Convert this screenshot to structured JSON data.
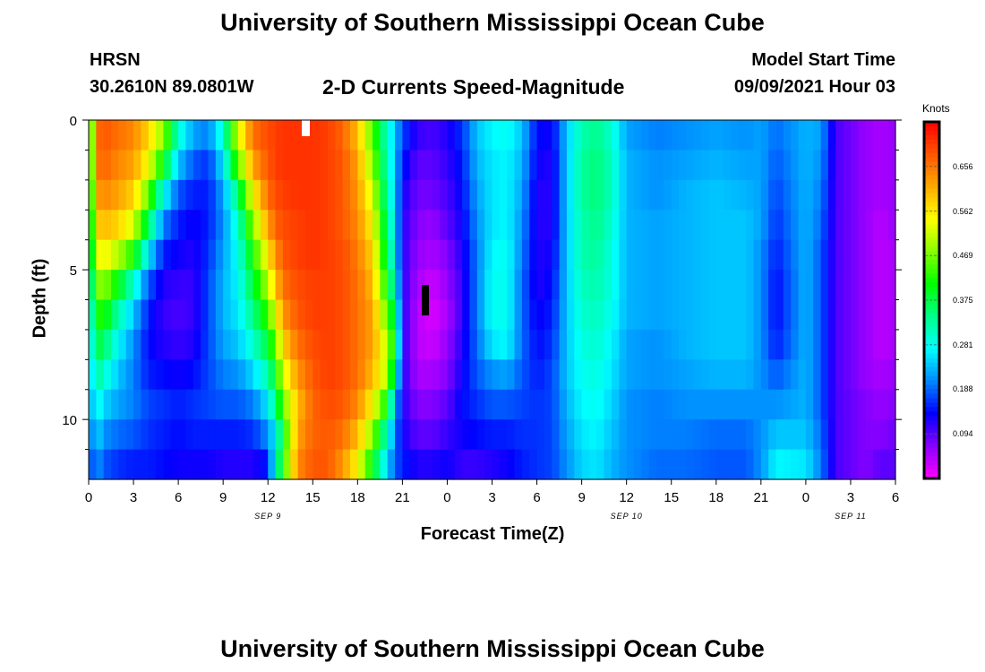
{
  "header": {
    "title": "University of Southern Mississippi Ocean Cube",
    "station": "HRSN",
    "coordinates": "30.2610N  89.0801W",
    "subtitle": "2-D Currents Speed-Magnitude",
    "model_start_label": "Model Start Time",
    "model_start_time": "09/09/2021 Hour 03"
  },
  "footer": {
    "title": "University of Southern Mississippi Ocean Cube"
  },
  "chart_data": {
    "type": "heatmap",
    "title": "2-D Currents Speed-Magnitude",
    "xlabel": "Forecast Time(Z)",
    "ylabel": "Depth (ft)",
    "x_unit": "hours from 09/09 00Z",
    "xlim": [
      0,
      54
    ],
    "x_ticks": [
      0,
      3,
      6,
      9,
      12,
      15,
      18,
      21,
      24,
      27,
      30,
      33,
      36,
      39,
      42,
      45,
      48,
      51,
      54
    ],
    "x_tick_labels": [
      "0",
      "3",
      "6",
      "9",
      "12",
      "15",
      "18",
      "21",
      "0",
      "3",
      "6",
      "9",
      "12",
      "15",
      "18",
      "21",
      "0",
      "3",
      "6"
    ],
    "date_labels": [
      {
        "x": 12,
        "text": "SEP 9"
      },
      {
        "x": 36,
        "text": "SEP 10"
      },
      {
        "x": 51,
        "text": "SEP 11"
      }
    ],
    "ylim": [
      0,
      12
    ],
    "y_major_ticks": [
      0,
      5,
      10
    ],
    "y_minor_ticks": [
      1,
      2,
      3,
      4,
      6,
      7,
      8,
      9,
      11
    ],
    "colorbar": {
      "units": "Knots",
      "range": [
        0.0,
        0.75
      ],
      "tick_values": [
        0.094,
        0.188,
        0.281,
        0.375,
        0.469,
        0.562,
        0.656
      ],
      "tick_labels": [
        "0.094",
        "0.188",
        "0.281",
        "0.375",
        "0.469",
        "0.562",
        "0.656"
      ],
      "colors": [
        "#ff00ff",
        "#8800ff",
        "#0000ff",
        "#0088ff",
        "#00ffff",
        "#00ff88",
        "#00ff00",
        "#88ff00",
        "#ffff00",
        "#ffaa00",
        "#ff5500",
        "#ff0000"
      ]
    },
    "depth_levels_ft": [
      0.5,
      1.5,
      2.5,
      3.5,
      4.5,
      5.5,
      6.5,
      7.5,
      8.5,
      9.5,
      10.5,
      11.5
    ],
    "time_knots_hours": [
      0,
      0.5,
      1,
      2,
      3,
      4,
      5,
      6,
      7,
      8,
      9,
      10,
      11,
      12,
      12.5,
      13,
      14,
      15,
      16,
      17,
      18,
      19,
      20,
      20.5,
      21,
      22,
      23,
      24,
      25,
      26,
      27,
      28,
      29,
      30,
      31,
      32,
      33,
      34,
      35,
      36,
      38,
      40,
      42,
      44,
      45,
      46,
      48,
      49,
      50,
      52,
      53,
      54
    ],
    "speed_profiles_knots": [
      [
        0.3,
        0.3,
        0.29,
        0.28,
        0.27,
        0.25,
        0.23,
        0.22,
        0.2,
        0.19,
        0.17,
        0.15
      ],
      [
        0.66,
        0.65,
        0.62,
        0.58,
        0.53,
        0.47,
        0.42,
        0.38,
        0.34,
        0.3,
        0.26,
        0.22
      ],
      [
        0.68,
        0.67,
        0.64,
        0.6,
        0.55,
        0.48,
        0.42,
        0.36,
        0.3,
        0.25,
        0.21,
        0.18
      ],
      [
        0.66,
        0.64,
        0.62,
        0.58,
        0.5,
        0.4,
        0.32,
        0.27,
        0.24,
        0.22,
        0.19,
        0.16
      ],
      [
        0.64,
        0.62,
        0.58,
        0.52,
        0.42,
        0.3,
        0.24,
        0.21,
        0.2,
        0.2,
        0.18,
        0.15
      ],
      [
        0.58,
        0.54,
        0.46,
        0.36,
        0.26,
        0.18,
        0.15,
        0.14,
        0.15,
        0.17,
        0.16,
        0.15
      ],
      [
        0.48,
        0.4,
        0.28,
        0.2,
        0.15,
        0.12,
        0.11,
        0.12,
        0.14,
        0.16,
        0.15,
        0.14
      ],
      [
        0.3,
        0.24,
        0.18,
        0.15,
        0.13,
        0.11,
        0.1,
        0.11,
        0.13,
        0.15,
        0.14,
        0.13
      ],
      [
        0.22,
        0.18,
        0.15,
        0.13,
        0.12,
        0.11,
        0.11,
        0.12,
        0.14,
        0.16,
        0.15,
        0.13
      ],
      [
        0.2,
        0.16,
        0.15,
        0.15,
        0.16,
        0.17,
        0.17,
        0.17,
        0.17,
        0.17,
        0.15,
        0.13
      ],
      [
        0.3,
        0.26,
        0.22,
        0.21,
        0.22,
        0.23,
        0.23,
        0.22,
        0.2,
        0.18,
        0.15,
        0.12
      ],
      [
        0.52,
        0.45,
        0.35,
        0.3,
        0.28,
        0.27,
        0.26,
        0.24,
        0.21,
        0.18,
        0.15,
        0.12
      ],
      [
        0.66,
        0.62,
        0.55,
        0.48,
        0.42,
        0.38,
        0.34,
        0.3,
        0.25,
        0.2,
        0.16,
        0.12
      ],
      [
        0.69,
        0.68,
        0.66,
        0.62,
        0.56,
        0.5,
        0.44,
        0.38,
        0.32,
        0.26,
        0.21,
        0.15
      ],
      [
        0.7,
        0.7,
        0.69,
        0.67,
        0.63,
        0.59,
        0.53,
        0.46,
        0.4,
        0.34,
        0.27,
        0.3
      ],
      [
        0.71,
        0.71,
        0.7,
        0.69,
        0.68,
        0.66,
        0.63,
        0.58,
        0.52,
        0.46,
        0.4,
        0.42
      ],
      [
        0.71,
        0.71,
        0.71,
        0.7,
        0.7,
        0.69,
        0.68,
        0.66,
        0.63,
        0.6,
        0.62,
        0.64
      ],
      [
        0.71,
        0.71,
        0.71,
        0.71,
        0.71,
        0.7,
        0.7,
        0.69,
        0.68,
        0.67,
        0.67,
        0.68
      ],
      [
        0.7,
        0.7,
        0.7,
        0.7,
        0.7,
        0.7,
        0.7,
        0.7,
        0.7,
        0.69,
        0.68,
        0.68
      ],
      [
        0.67,
        0.68,
        0.68,
        0.68,
        0.69,
        0.69,
        0.69,
        0.69,
        0.69,
        0.68,
        0.66,
        0.63
      ],
      [
        0.6,
        0.62,
        0.63,
        0.64,
        0.65,
        0.66,
        0.66,
        0.66,
        0.66,
        0.64,
        0.6,
        0.55
      ],
      [
        0.45,
        0.48,
        0.52,
        0.55,
        0.58,
        0.6,
        0.62,
        0.62,
        0.6,
        0.55,
        0.48,
        0.4
      ],
      [
        0.3,
        0.31,
        0.32,
        0.34,
        0.36,
        0.4,
        0.45,
        0.5,
        0.5,
        0.4,
        0.3,
        0.25
      ],
      [
        0.24,
        0.24,
        0.25,
        0.26,
        0.27,
        0.3,
        0.35,
        0.38,
        0.32,
        0.24,
        0.2,
        0.18
      ],
      [
        0.17,
        0.15,
        0.13,
        0.12,
        0.12,
        0.12,
        0.12,
        0.12,
        0.12,
        0.12,
        0.13,
        0.15
      ],
      [
        0.11,
        0.09,
        0.08,
        0.07,
        0.06,
        0.05,
        0.04,
        0.04,
        0.05,
        0.07,
        0.09,
        0.12
      ],
      [
        0.1,
        0.09,
        0.08,
        0.06,
        0.05,
        0.03,
        0.02,
        0.03,
        0.05,
        0.07,
        0.09,
        0.12
      ],
      [
        0.12,
        0.11,
        0.1,
        0.09,
        0.07,
        0.06,
        0.05,
        0.06,
        0.07,
        0.09,
        0.11,
        0.13
      ],
      [
        0.16,
        0.15,
        0.14,
        0.13,
        0.12,
        0.11,
        0.11,
        0.12,
        0.13,
        0.14,
        0.13,
        0.11
      ],
      [
        0.24,
        0.23,
        0.22,
        0.21,
        0.2,
        0.2,
        0.2,
        0.19,
        0.18,
        0.16,
        0.14,
        0.11
      ],
      [
        0.27,
        0.26,
        0.26,
        0.26,
        0.27,
        0.28,
        0.28,
        0.26,
        0.21,
        0.18,
        0.15,
        0.12
      ],
      [
        0.28,
        0.27,
        0.27,
        0.27,
        0.28,
        0.28,
        0.28,
        0.27,
        0.22,
        0.18,
        0.15,
        0.13
      ],
      [
        0.24,
        0.23,
        0.22,
        0.21,
        0.2,
        0.19,
        0.19,
        0.19,
        0.18,
        0.17,
        0.16,
        0.15
      ],
      [
        0.14,
        0.13,
        0.12,
        0.12,
        0.12,
        0.12,
        0.13,
        0.14,
        0.15,
        0.16,
        0.16,
        0.16
      ],
      [
        0.13,
        0.12,
        0.12,
        0.12,
        0.13,
        0.14,
        0.15,
        0.16,
        0.17,
        0.17,
        0.17,
        0.17
      ],
      [
        0.24,
        0.24,
        0.24,
        0.24,
        0.24,
        0.24,
        0.24,
        0.24,
        0.24,
        0.23,
        0.22,
        0.21
      ],
      [
        0.32,
        0.33,
        0.33,
        0.32,
        0.32,
        0.31,
        0.3,
        0.29,
        0.28,
        0.27,
        0.26,
        0.25
      ],
      [
        0.34,
        0.35,
        0.35,
        0.34,
        0.33,
        0.32,
        0.31,
        0.3,
        0.29,
        0.28,
        0.27,
        0.26
      ],
      [
        0.3,
        0.31,
        0.31,
        0.3,
        0.29,
        0.29,
        0.28,
        0.27,
        0.26,
        0.25,
        0.24,
        0.23
      ],
      [
        0.22,
        0.23,
        0.23,
        0.23,
        0.23,
        0.23,
        0.23,
        0.22,
        0.22,
        0.21,
        0.21,
        0.21
      ],
      [
        0.2,
        0.21,
        0.21,
        0.22,
        0.22,
        0.22,
        0.22,
        0.21,
        0.21,
        0.2,
        0.2,
        0.19
      ],
      [
        0.21,
        0.22,
        0.23,
        0.23,
        0.23,
        0.23,
        0.23,
        0.23,
        0.22,
        0.21,
        0.2,
        0.19
      ],
      [
        0.22,
        0.23,
        0.24,
        0.24,
        0.24,
        0.24,
        0.24,
        0.24,
        0.23,
        0.21,
        0.19,
        0.18
      ],
      [
        0.21,
        0.22,
        0.23,
        0.24,
        0.24,
        0.24,
        0.24,
        0.24,
        0.23,
        0.21,
        0.19,
        0.18
      ],
      [
        0.22,
        0.22,
        0.22,
        0.22,
        0.21,
        0.21,
        0.21,
        0.21,
        0.21,
        0.21,
        0.21,
        0.21
      ],
      [
        0.19,
        0.18,
        0.17,
        0.16,
        0.15,
        0.14,
        0.14,
        0.15,
        0.18,
        0.21,
        0.24,
        0.27
      ],
      [
        0.23,
        0.23,
        0.23,
        0.23,
        0.23,
        0.23,
        0.23,
        0.23,
        0.23,
        0.23,
        0.24,
        0.26
      ],
      [
        0.22,
        0.21,
        0.2,
        0.19,
        0.18,
        0.18,
        0.18,
        0.18,
        0.18,
        0.18,
        0.19,
        0.2
      ],
      [
        0.1,
        0.1,
        0.1,
        0.1,
        0.1,
        0.1,
        0.1,
        0.1,
        0.1,
        0.1,
        0.1,
        0.1
      ],
      [
        0.06,
        0.06,
        0.06,
        0.06,
        0.06,
        0.06,
        0.06,
        0.06,
        0.06,
        0.07,
        0.07,
        0.07
      ],
      [
        0.05,
        0.05,
        0.05,
        0.04,
        0.04,
        0.04,
        0.04,
        0.04,
        0.05,
        0.06,
        0.07,
        0.09
      ],
      [
        0.06,
        0.06,
        0.06,
        0.06,
        0.05,
        0.05,
        0.05,
        0.05,
        0.06,
        0.07,
        0.08,
        0.09
      ]
    ]
  }
}
